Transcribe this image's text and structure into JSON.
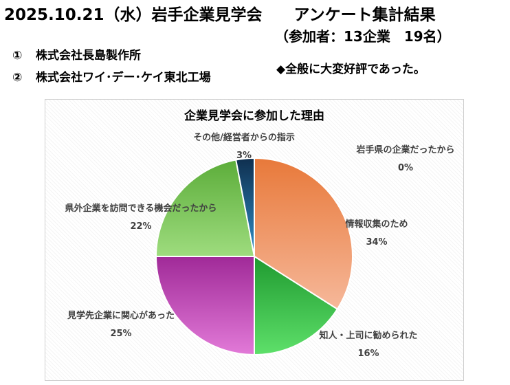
{
  "header": {
    "title": "2025.10.21（水）岩手企業見学会　　アンケート集計結果",
    "subtitle": "（参加者：13企業　19名）"
  },
  "companies": [
    {
      "num": "①",
      "name": "株式会社長島製作所"
    },
    {
      "num": "②",
      "name": "株式会社ワイ･デー･ケイ東北工場"
    }
  ],
  "note": "◆全般に大変好評であった。",
  "chart_data": {
    "type": "pie",
    "title": "企業見学会に参加した理由",
    "slices": [
      {
        "label": "岩手県の企業だったから",
        "value": 0,
        "pct": "0%",
        "color": "#e57a3c"
      },
      {
        "label": "情報収集のため",
        "value": 34,
        "pct": "34%",
        "color": "#f0a07a"
      },
      {
        "label": "知人・上司に勧められた",
        "value": 16,
        "pct": "16%",
        "color": "#34c24a"
      },
      {
        "label": "見学先企業に関心があった",
        "value": 25,
        "pct": "25%",
        "color": "#c04cba"
      },
      {
        "label": "県外企業を訪問できる機会だったから",
        "value": 22,
        "pct": "22%",
        "color": "#7dcc5e"
      },
      {
        "label": "その他/経営者からの指示",
        "value": 3,
        "pct": "3%",
        "color": "#1f4f7a"
      }
    ]
  }
}
